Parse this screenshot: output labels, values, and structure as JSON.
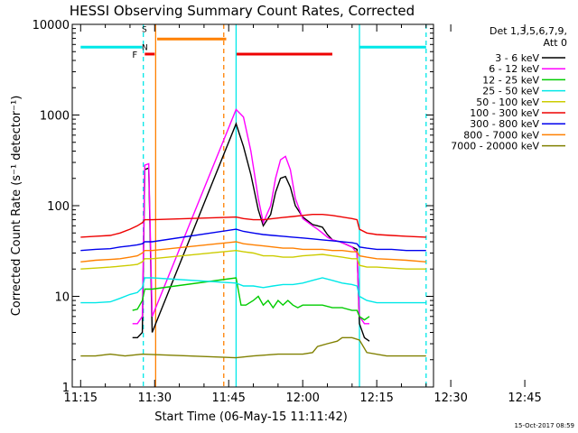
{
  "chart_data": {
    "type": "line",
    "title": "HESSI Observing Summary Count Rates, Corrected",
    "xlabel": "Start Time (06-May-15 11:11:42)",
    "ylabel": "Corrected Count Rate (s⁻¹ detector⁻¹)",
    "y_scale": "log",
    "x_ticks": [
      "11:15",
      "11:30",
      "11:45",
      "12:00",
      "12:15",
      "12:30",
      "12:45"
    ],
    "y_ticks": [
      "1",
      "10",
      "100",
      "1000",
      "10000"
    ],
    "x_range_min": [
      -1.7,
      71.5
    ],
    "ylim": [
      1,
      10000
    ],
    "legend_header": [
      "Det 1,3,5,6,7,9,",
      "Att 0"
    ],
    "legend_position": "top-right",
    "footer": "15-Oct-2017 08:59",
    "annotations": [
      "F",
      "S",
      "N"
    ],
    "flag_bars": [
      {
        "name": "Night",
        "label": "N",
        "color": "#00e8e8",
        "y": 5600,
        "segments": [
          [
            0,
            12.5
          ],
          [
            56.5,
            70
          ]
        ]
      },
      {
        "name": "SAA",
        "label": "S",
        "color": "#ff8000",
        "y": 6900,
        "segments": [
          [
            15.5,
            29.5
          ]
        ]
      },
      {
        "name": "Flare",
        "label": "F",
        "color": "#ee0000",
        "y": 4700,
        "segments": [
          [
            13,
            15
          ],
          [
            31.5,
            51
          ]
        ]
      }
    ],
    "vertical_markers": [
      {
        "color": "#00e8e8",
        "style": "dashed",
        "x": 12.7
      },
      {
        "color": "#ff8000",
        "style": "solid",
        "x": 15.2
      },
      {
        "color": "#ff8000",
        "style": "dashed",
        "x": 29.0
      },
      {
        "color": "#00e8e8",
        "style": "solid",
        "x": 31.5
      },
      {
        "color": "#00e8e8",
        "style": "solid",
        "x": 56.5
      },
      {
        "color": "#00e8e8",
        "style": "dashed",
        "x": 70.0
      }
    ],
    "series": [
      {
        "name": "3 - 6 keV",
        "color": "#000000",
        "points": [
          [
            10.5,
            3.5
          ],
          [
            11.5,
            3.5
          ],
          [
            12.5,
            4
          ],
          [
            13.0,
            250
          ],
          [
            13.8,
            260
          ],
          [
            14.5,
            4
          ],
          [
            31.5,
            800
          ],
          [
            33,
            450
          ],
          [
            34.5,
            220
          ],
          [
            36,
            90
          ],
          [
            37,
            60
          ],
          [
            38.5,
            80
          ],
          [
            39.5,
            140
          ],
          [
            40.5,
            200
          ],
          [
            41.5,
            210
          ],
          [
            42.5,
            160
          ],
          [
            43.5,
            100
          ],
          [
            45,
            75
          ],
          [
            47,
            62
          ],
          [
            48,
            60
          ],
          [
            49,
            58
          ],
          [
            50,
            48
          ],
          [
            51,
            42
          ],
          [
            52.5,
            40
          ],
          [
            53.5,
            38
          ],
          [
            55,
            35
          ],
          [
            56,
            33
          ],
          [
            56.5,
            5
          ],
          [
            57.5,
            3.5
          ],
          [
            58.5,
            3.2
          ]
        ]
      },
      {
        "name": "6 - 12 keV",
        "color": "#ff00ff",
        "points": [
          [
            10.5,
            5
          ],
          [
            11.5,
            5
          ],
          [
            12.5,
            6
          ],
          [
            13.0,
            280
          ],
          [
            13.8,
            290
          ],
          [
            14.5,
            6
          ],
          [
            31.5,
            1150
          ],
          [
            33,
            950
          ],
          [
            34.5,
            400
          ],
          [
            36,
            120
          ],
          [
            37,
            65
          ],
          [
            38.5,
            100
          ],
          [
            39.5,
            200
          ],
          [
            40.5,
            320
          ],
          [
            41.5,
            350
          ],
          [
            42.5,
            250
          ],
          [
            43.5,
            120
          ],
          [
            45,
            72
          ],
          [
            47,
            60
          ],
          [
            48,
            55
          ],
          [
            49,
            50
          ],
          [
            50,
            45
          ],
          [
            51,
            42
          ],
          [
            52.5,
            40
          ],
          [
            53.5,
            38
          ],
          [
            55,
            35
          ],
          [
            56,
            30
          ],
          [
            56.5,
            6
          ],
          [
            57.5,
            5
          ],
          [
            58.5,
            5
          ]
        ]
      },
      {
        "name": "12 - 25 keV",
        "color": "#00cc00",
        "points": [
          [
            10.5,
            7
          ],
          [
            11.5,
            7.2
          ],
          [
            12.5,
            9
          ],
          [
            13.0,
            12
          ],
          [
            14.5,
            12
          ],
          [
            31.5,
            16
          ],
          [
            32.5,
            8
          ],
          [
            33.5,
            8
          ],
          [
            35,
            9
          ],
          [
            36,
            10
          ],
          [
            37,
            8
          ],
          [
            38,
            9
          ],
          [
            39,
            7.5
          ],
          [
            40,
            9
          ],
          [
            41,
            8
          ],
          [
            42,
            9
          ],
          [
            43,
            8
          ],
          [
            44,
            7.5
          ],
          [
            45,
            8
          ],
          [
            47,
            8
          ],
          [
            49,
            8
          ],
          [
            51,
            7.5
          ],
          [
            53,
            7.5
          ],
          [
            55,
            7
          ],
          [
            56,
            7
          ],
          [
            56.5,
            6
          ],
          [
            57.5,
            5.5
          ],
          [
            58.5,
            6
          ]
        ]
      },
      {
        "name": "25 - 50 keV",
        "color": "#00e8e8",
        "points": [
          [
            0,
            8.5
          ],
          [
            3,
            8.5
          ],
          [
            6,
            8.7
          ],
          [
            8,
            9.5
          ],
          [
            10,
            10.5
          ],
          [
            11.5,
            11
          ],
          [
            12.5,
            12.5
          ],
          [
            13.0,
            16
          ],
          [
            14.5,
            16
          ],
          [
            31.5,
            14
          ],
          [
            33,
            13
          ],
          [
            35,
            13
          ],
          [
            37,
            12.5
          ],
          [
            39,
            13
          ],
          [
            41,
            13.5
          ],
          [
            43,
            13.5
          ],
          [
            45,
            14
          ],
          [
            47,
            15
          ],
          [
            49,
            16
          ],
          [
            51,
            15
          ],
          [
            53,
            14
          ],
          [
            55,
            13.5
          ],
          [
            56,
            13
          ],
          [
            56.5,
            10
          ],
          [
            58,
            9
          ],
          [
            60,
            8.5
          ],
          [
            63,
            8.5
          ],
          [
            66,
            8.5
          ],
          [
            70,
            8.5
          ]
        ]
      },
      {
        "name": "50 - 100 keV",
        "color": "#cccc00",
        "points": [
          [
            0,
            20
          ],
          [
            3,
            20.5
          ],
          [
            6,
            21
          ],
          [
            8,
            21.5
          ],
          [
            10,
            22
          ],
          [
            11.5,
            22.5
          ],
          [
            12.5,
            24
          ],
          [
            13.0,
            26
          ],
          [
            14.5,
            26
          ],
          [
            31.5,
            32
          ],
          [
            33,
            31
          ],
          [
            35,
            30
          ],
          [
            37,
            28
          ],
          [
            39,
            28
          ],
          [
            41,
            27
          ],
          [
            43,
            27
          ],
          [
            45,
            28
          ],
          [
            47,
            28.5
          ],
          [
            49,
            29
          ],
          [
            51,
            28
          ],
          [
            53,
            27
          ],
          [
            55,
            26
          ],
          [
            56,
            26
          ],
          [
            56.5,
            22
          ],
          [
            58,
            21
          ],
          [
            60,
            21
          ],
          [
            63,
            20.5
          ],
          [
            66,
            20
          ],
          [
            70,
            20
          ]
        ]
      },
      {
        "name": "100 - 300 keV",
        "color": "#ee0000",
        "points": [
          [
            0,
            45
          ],
          [
            3,
            46
          ],
          [
            6,
            47
          ],
          [
            8,
            50
          ],
          [
            10,
            55
          ],
          [
            11.5,
            60
          ],
          [
            12.5,
            65
          ],
          [
            13.0,
            70
          ],
          [
            14.5,
            70
          ],
          [
            31.5,
            75
          ],
          [
            33,
            72
          ],
          [
            35,
            70
          ],
          [
            37,
            70
          ],
          [
            39,
            72
          ],
          [
            41,
            74
          ],
          [
            43,
            76
          ],
          [
            45,
            78
          ],
          [
            47,
            80
          ],
          [
            49,
            80
          ],
          [
            51,
            78
          ],
          [
            53,
            75
          ],
          [
            55,
            72
          ],
          [
            56,
            70
          ],
          [
            56.5,
            55
          ],
          [
            58,
            50
          ],
          [
            60,
            48
          ],
          [
            63,
            47
          ],
          [
            66,
            46
          ],
          [
            70,
            45
          ]
        ]
      },
      {
        "name": "300 - 800 keV",
        "color": "#0000ee",
        "points": [
          [
            0,
            32
          ],
          [
            3,
            33
          ],
          [
            6,
            33.5
          ],
          [
            8,
            35
          ],
          [
            10,
            36
          ],
          [
            11.5,
            37
          ],
          [
            12.5,
            38
          ],
          [
            13.0,
            40
          ],
          [
            14.5,
            40
          ],
          [
            31.5,
            55
          ],
          [
            33,
            52
          ],
          [
            35,
            50
          ],
          [
            37,
            48
          ],
          [
            39,
            47
          ],
          [
            41,
            46
          ],
          [
            43,
            45
          ],
          [
            45,
            44
          ],
          [
            47,
            43
          ],
          [
            49,
            42
          ],
          [
            51,
            41
          ],
          [
            53,
            40
          ],
          [
            55,
            39
          ],
          [
            56,
            38
          ],
          [
            56.5,
            35
          ],
          [
            58,
            34
          ],
          [
            60,
            33
          ],
          [
            63,
            33
          ],
          [
            66,
            32
          ],
          [
            70,
            32
          ]
        ]
      },
      {
        "name": "800 - 7000 keV",
        "color": "#ff8000",
        "points": [
          [
            0,
            24
          ],
          [
            3,
            25
          ],
          [
            6,
            25.5
          ],
          [
            8,
            26
          ],
          [
            10,
            27
          ],
          [
            11.5,
            28
          ],
          [
            12.5,
            30
          ],
          [
            13.0,
            32
          ],
          [
            14.5,
            32
          ],
          [
            31.5,
            40
          ],
          [
            33,
            38
          ],
          [
            35,
            37
          ],
          [
            37,
            36
          ],
          [
            39,
            35
          ],
          [
            41,
            34
          ],
          [
            43,
            34
          ],
          [
            45,
            33
          ],
          [
            47,
            33
          ],
          [
            49,
            33
          ],
          [
            51,
            32
          ],
          [
            53,
            32
          ],
          [
            55,
            31
          ],
          [
            56,
            31
          ],
          [
            56.5,
            28
          ],
          [
            58,
            27
          ],
          [
            60,
            26
          ],
          [
            63,
            25.5
          ],
          [
            66,
            25
          ],
          [
            70,
            24
          ]
        ]
      },
      {
        "name": "7000 - 20000 keV",
        "color": "#808000",
        "points": [
          [
            0,
            2.2
          ],
          [
            3,
            2.2
          ],
          [
            6,
            2.3
          ],
          [
            9,
            2.2
          ],
          [
            12.5,
            2.3
          ],
          [
            31.5,
            2.1
          ],
          [
            35,
            2.2
          ],
          [
            40,
            2.3
          ],
          [
            45,
            2.3
          ],
          [
            47,
            2.4
          ],
          [
            48,
            2.8
          ],
          [
            50,
            3.0
          ],
          [
            52,
            3.2
          ],
          [
            53,
            3.5
          ],
          [
            55,
            3.5
          ],
          [
            56.5,
            3.3
          ],
          [
            58,
            2.4
          ],
          [
            62,
            2.2
          ],
          [
            66,
            2.2
          ],
          [
            70,
            2.2
          ]
        ]
      }
    ]
  }
}
